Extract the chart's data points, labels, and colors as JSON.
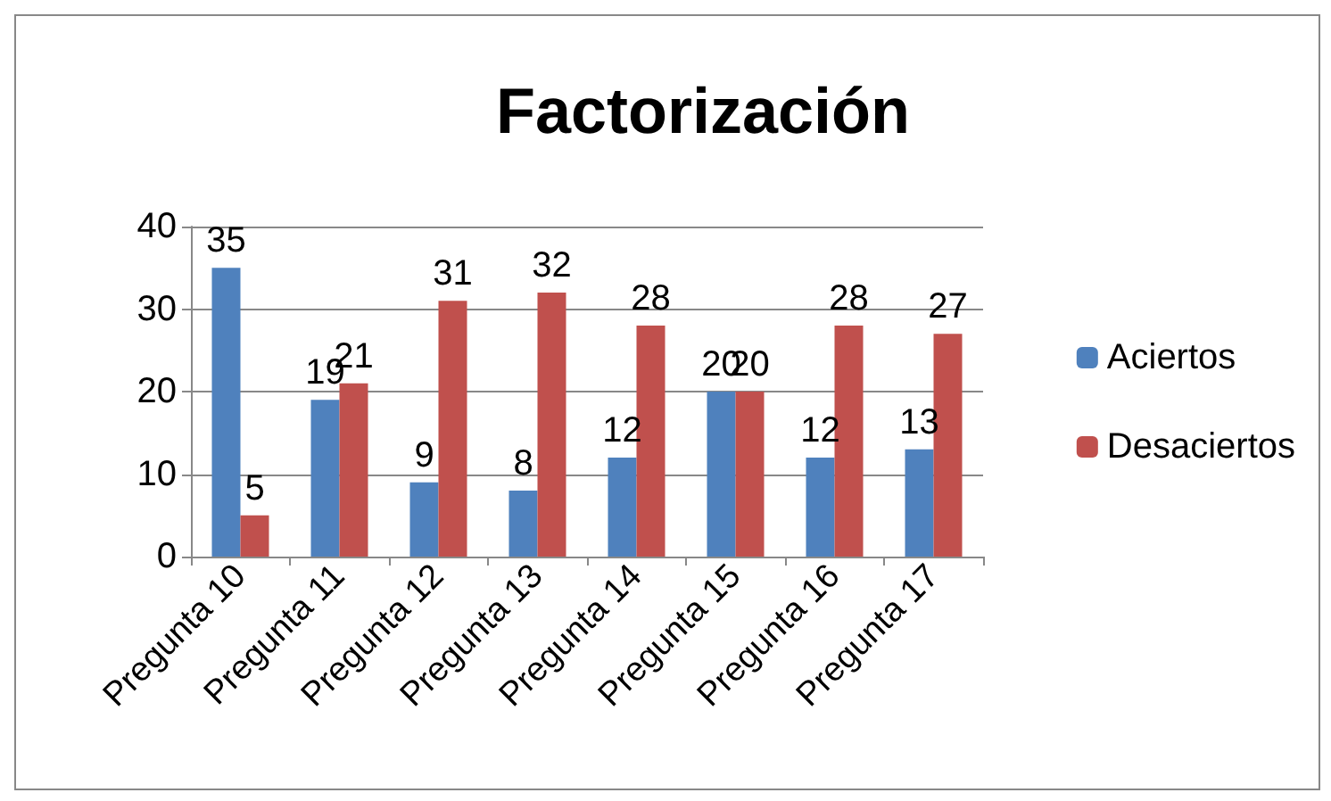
{
  "chart_data": {
    "type": "bar",
    "title": "Factorización",
    "categories": [
      "Pregunta 10",
      "Pregunta 11",
      "Pregunta 12",
      "Pregunta 13",
      "Pregunta 14",
      "Pregunta 15",
      "Pregunta 16",
      "Pregunta 17"
    ],
    "series": [
      {
        "name": "Aciertos",
        "color": "#4f81bd",
        "values": [
          35,
          19,
          9,
          8,
          12,
          20,
          12,
          13
        ]
      },
      {
        "name": "Desaciertos",
        "color": "#c0504d",
        "values": [
          5,
          21,
          31,
          32,
          28,
          20,
          28,
          27
        ]
      }
    ],
    "ylim": [
      0,
      40
    ],
    "yticks": [
      0,
      10,
      20,
      30,
      40
    ],
    "grid": "y",
    "legend": "right",
    "data_labels": true
  }
}
